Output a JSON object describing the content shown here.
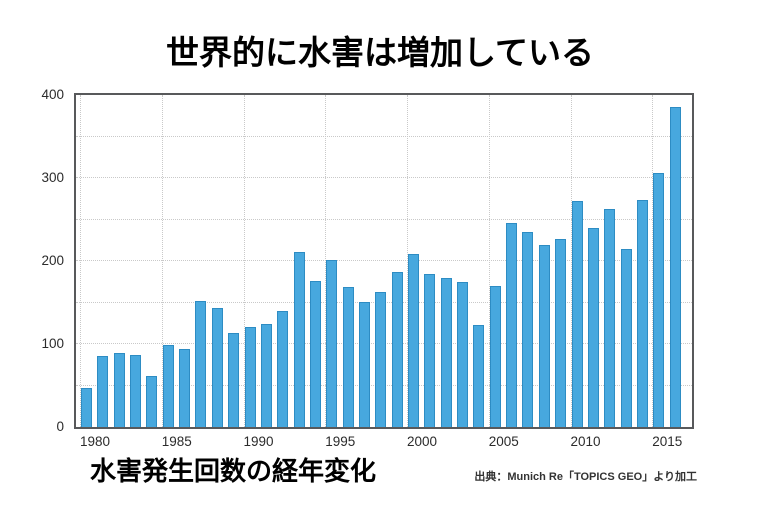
{
  "title": "世界的に水害は増加している",
  "caption": "水害発生回数の経年変化",
  "source": "出典：Munich Re「TOPICS GEO」より加工",
  "chart_data": {
    "type": "bar",
    "title": "世界的に水害は増加している",
    "subtitle": "水害発生回数の経年変化",
    "categories": [
      1980,
      1981,
      1982,
      1983,
      1984,
      1985,
      1986,
      1987,
      1988,
      1989,
      1990,
      1991,
      1992,
      1993,
      1994,
      1995,
      1996,
      1997,
      1998,
      1999,
      2000,
      2001,
      2002,
      2003,
      2004,
      2005,
      2006,
      2007,
      2008,
      2009,
      2010,
      2011,
      2012,
      2013,
      2014,
      2015,
      2016
    ],
    "values": [
      47,
      86,
      89,
      87,
      61,
      99,
      94,
      152,
      143,
      113,
      121,
      124,
      140,
      211,
      176,
      201,
      169,
      151,
      163,
      187,
      208,
      184,
      179,
      175,
      123,
      170,
      246,
      235,
      219,
      226,
      272,
      240,
      263,
      215,
      274,
      306,
      385
    ],
    "xlabel": "",
    "ylabel": "",
    "ylim": [
      0,
      400
    ],
    "yticks": [
      0,
      100,
      200,
      300,
      400
    ],
    "xticks": [
      1980,
      1985,
      1990,
      1995,
      2000,
      2005,
      2010,
      2015
    ],
    "grid": "dotted gray lines every 50 units horizontally and every 5 years vertically",
    "legend": "none",
    "bar_color": "#47a8de",
    "bar_edge_color": "#2d8cc3",
    "frame_color": "#58595b",
    "gridline_color": "#c9c9c9"
  }
}
